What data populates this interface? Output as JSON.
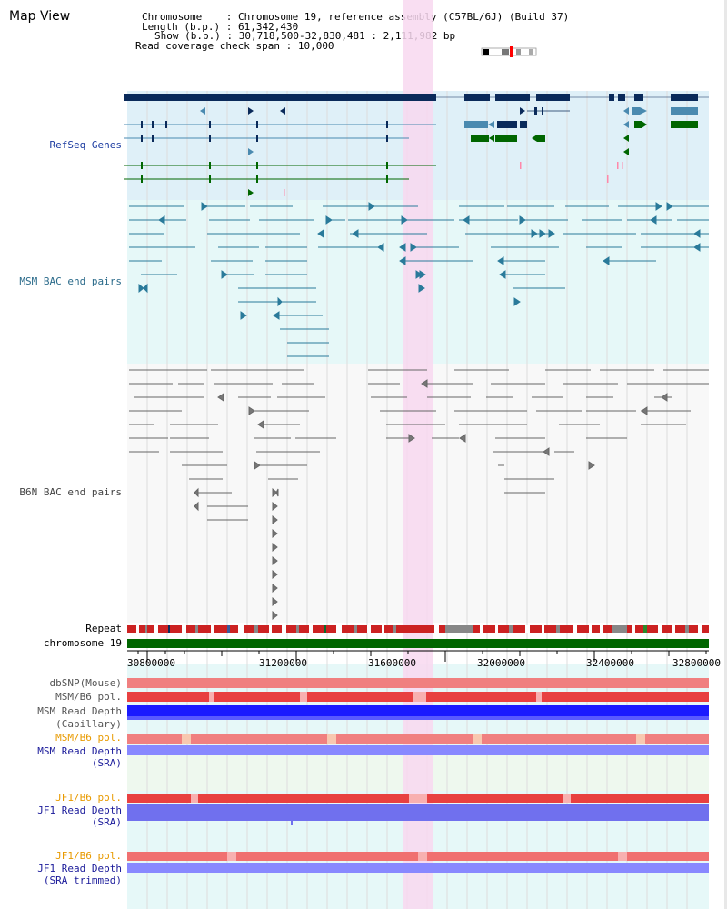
{
  "title": "Map View",
  "header": {
    "chromosome_key": "Chromosome",
    "chromosome_val": ": Chromosome 19, reference assembly (C57BL/6J) (Build 37)",
    "length_key": "Length (b.p.)",
    "length_val": ": 61,342,430",
    "show_key": "Show (b.p.)",
    "show_val": ": 30,718,500-32,830,481 : 2,111,982 bp",
    "coverage_key": "Read coverage check span",
    "coverage_val": ": 10,000"
  },
  "tracks": {
    "refseq": "RefSeq Genes",
    "msm_bac": "MSM BAC end pairs",
    "b6n_bac": "B6N BAC end pairs",
    "repeat": "Repeat",
    "chromosome": "chromosome 19",
    "dbsnp": "dbSNP(Mouse)",
    "msm_b6_pol": "MSM/B6 pol.",
    "msm_depth_cap_1": "MSM Read Depth",
    "msm_depth_cap_2": "(Capillary)",
    "msm_b6_pol2": "MSM/B6 pol.",
    "msm_depth_sra_1": "MSM Read Depth",
    "msm_depth_sra_2": "(SRA)",
    "jf1_b6_pol": "JF1/B6 pol.",
    "jf1_depth_sra_1": "JF1 Read Depth",
    "jf1_depth_sra_2": "(SRA)",
    "jf1_b6_pol2": "JF1/B6 pol.",
    "jf1_depth_trim_1": "JF1 Read Depth",
    "jf1_depth_trim_2": "(SRA trimmed)"
  },
  "axis_ticks": [
    "30800000",
    "31200000",
    "31600000",
    "32000000",
    "32400000",
    "32800000"
  ],
  "colors": {
    "refseq_bg": "#dff0f8",
    "msm_bg": "#e6f8f8",
    "highlight": "#f8d8f0",
    "gene_dark": "#0a2a5a",
    "gene_mid": "#4a8ab0",
    "gene_green": "#006600",
    "bac_teal": "#2a7a9a",
    "bac_gray": "#666666",
    "pol_red": "#e84040",
    "depth_blue": "#1a1aff",
    "depth_light": "#8888ff"
  }
}
